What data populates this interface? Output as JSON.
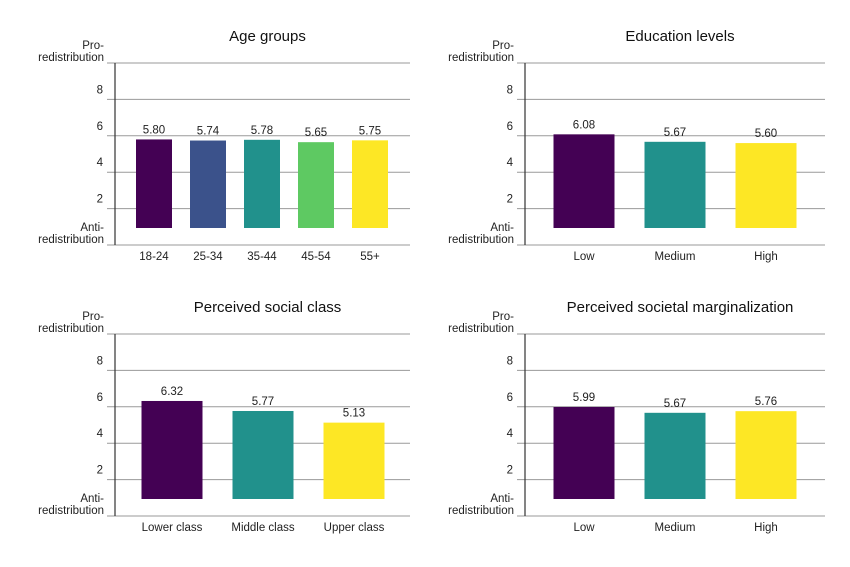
{
  "chart_data": [
    {
      "type": "bar",
      "title": "Age groups",
      "categories": [
        "18-24",
        "25-34",
        "35-44",
        "45-54",
        "55+"
      ],
      "values": [
        5.8,
        5.74,
        5.78,
        5.65,
        5.75
      ],
      "value_labels": [
        "5.80",
        "5.74",
        "5.78",
        "5.65",
        "5.75"
      ],
      "colors": [
        "#440154",
        "#3b528b",
        "#21918c",
        "#5ec962",
        "#fde725"
      ],
      "y_ticks": [
        "Pro-\nredistribution",
        "8",
        "6",
        "4",
        "2",
        "Anti-\nredistribution"
      ],
      "ylim": [
        0,
        10
      ],
      "grid": true
    },
    {
      "type": "bar",
      "title": "Education levels",
      "categories": [
        "Low",
        "Medium",
        "High"
      ],
      "values": [
        6.08,
        5.67,
        5.6
      ],
      "value_labels": [
        "6.08",
        "5.67",
        "5.60"
      ],
      "colors": [
        "#440154",
        "#21918c",
        "#fde725"
      ],
      "y_ticks": [
        "Pro-\nredistribution",
        "8",
        "6",
        "4",
        "2",
        "Anti-\nredistribution"
      ],
      "ylim": [
        0,
        10
      ],
      "grid": true
    },
    {
      "type": "bar",
      "title": "Perceived social class",
      "categories": [
        "Lower class",
        "Middle class",
        "Upper class"
      ],
      "values": [
        6.32,
        5.77,
        5.13
      ],
      "value_labels": [
        "6.32",
        "5.77",
        "5.13"
      ],
      "colors": [
        "#440154",
        "#21918c",
        "#fde725"
      ],
      "y_ticks": [
        "Pro-\nredistribution",
        "8",
        "6",
        "4",
        "2",
        "Anti-\nredistribution"
      ],
      "ylim": [
        0,
        10
      ],
      "grid": true
    },
    {
      "type": "bar",
      "title": "Perceived societal marginalization",
      "categories": [
        "Low",
        "Medium",
        "High"
      ],
      "values": [
        5.99,
        5.67,
        5.76
      ],
      "value_labels": [
        "5.99",
        "5.67",
        "5.76"
      ],
      "colors": [
        "#440154",
        "#21918c",
        "#fde725"
      ],
      "y_ticks": [
        "Pro-\nredistribution",
        "8",
        "6",
        "4",
        "2",
        "Anti-\nredistribution"
      ],
      "ylim": [
        0,
        10
      ],
      "grid": true
    }
  ]
}
